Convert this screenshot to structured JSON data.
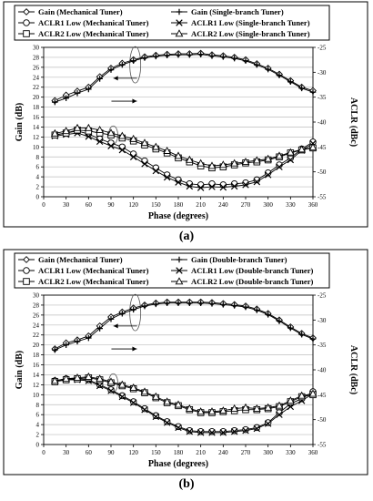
{
  "panels": [
    {
      "caption": "(a)",
      "chart_data": {
        "type": "line",
        "x_label": "Phase (degrees)",
        "y_left_label": "Gain (dB)",
        "y_right_label": "ACLR (dBc)",
        "x_ticks": [
          0,
          30,
          60,
          90,
          120,
          150,
          180,
          210,
          240,
          270,
          300,
          330,
          360
        ],
        "y_left_ticks": [
          0,
          2,
          4,
          6,
          8,
          10,
          12,
          14,
          16,
          18,
          20,
          22,
          24,
          26,
          28,
          30
        ],
        "y_right_ticks": [
          -25,
          -30,
          -35,
          -40,
          -45,
          -50,
          -55
        ],
        "xlim": [
          0,
          360
        ],
        "y_left_lim": [
          0,
          30
        ],
        "y_right_lim": [
          -55,
          -25
        ],
        "legend_position": "top",
        "x": [
          15,
          30,
          45,
          60,
          75,
          90,
          105,
          120,
          135,
          150,
          165,
          180,
          195,
          210,
          225,
          240,
          255,
          270,
          285,
          300,
          315,
          330,
          345,
          360
        ],
        "series": [
          {
            "name": "Gain (Mechanical Tuner)",
            "axis": "left",
            "marker": "diamond",
            "values": [
              19.3,
              20.4,
              21.2,
              22.0,
              24.1,
              25.8,
              26.8,
              27.5,
              28.1,
              28.4,
              28.6,
              28.7,
              28.7,
              28.8,
              28.5,
              28.3,
              28.0,
              27.5,
              26.7,
              25.8,
              24.6,
              23.3,
              22.0,
              21.3
            ]
          },
          {
            "name": "Gain (Single-branch Tuner)",
            "axis": "left",
            "marker": "plus",
            "values": [
              19.0,
              19.8,
              20.8,
              21.6,
              23.7,
              25.5,
              26.5,
              27.3,
              27.9,
              28.2,
              28.4,
              28.5,
              28.5,
              28.6,
              28.3,
              28.1,
              27.8,
              27.3,
              26.5,
              25.6,
              24.4,
              23.1,
              21.8,
              21.0
            ]
          },
          {
            "name": "ACLR1 Low (Mechanical Tuner)",
            "axis": "right",
            "marker": "circle",
            "values": [
              -42.6,
              -42.2,
              -41.8,
              -42.4,
              -43.4,
              -44.2,
              -45.0,
              -46.4,
              -47.8,
              -49.2,
              -50.6,
              -51.6,
              -52.4,
              -52.6,
              -52.4,
              -52.6,
              -52.4,
              -52.2,
              -51.6,
              -50.2,
              -48.6,
              -47.2,
              -45.4,
              -44.0
            ]
          },
          {
            "name": "ACLR1 Low (Single-branch Tuner)",
            "axis": "right",
            "marker": "x",
            "values": [
              -42.8,
              -42.5,
              -42.2,
              -42.9,
              -43.9,
              -44.8,
              -45.6,
              -47.0,
              -48.4,
              -49.8,
              -51.1,
              -52.1,
              -52.9,
              -53.2,
              -53.0,
              -53.1,
              -52.9,
              -52.6,
              -52.0,
              -50.6,
              -49.0,
              -47.6,
              -45.7,
              -44.3
            ]
          },
          {
            "name": "ACLR2 Low (Mechanical Tuner)",
            "axis": "right",
            "marker": "square",
            "values": [
              -42.6,
              -42.2,
              -41.6,
              -41.8,
              -42.2,
              -42.6,
              -43.2,
              -43.8,
              -44.6,
              -45.4,
              -46.2,
              -47.2,
              -48.0,
              -48.8,
              -49.2,
              -49.0,
              -48.6,
              -48.2,
              -48.0,
              -47.6,
              -47.0,
              -46.2,
              -45.6,
              -45.2
            ]
          },
          {
            "name": "ACLR2 Low (Single-branch Tuner)",
            "axis": "right",
            "marker": "triangle",
            "values": [
              -42.3,
              -41.8,
              -41.2,
              -41.2,
              -41.6,
              -42.2,
              -42.8,
              -43.4,
              -44.2,
              -45.0,
              -45.8,
              -46.8,
              -47.6,
              -48.3,
              -48.8,
              -48.6,
              -48.3,
              -48.0,
              -47.7,
              -47.4,
              -46.8,
              -46.1,
              -45.5,
              -45.1
            ]
          }
        ],
        "annotations": [
          {
            "ellipse_at_x": 120,
            "arrow": "left"
          },
          {
            "ellipse_at_x": 93,
            "arrow": "right"
          }
        ]
      }
    },
    {
      "caption": "(b)",
      "chart_data": {
        "type": "line",
        "x_label": "Phase (degrees)",
        "y_left_label": "Gain (dB)",
        "y_right_label": "ACLR (dBc)",
        "x_ticks": [
          0,
          30,
          60,
          90,
          120,
          150,
          180,
          210,
          240,
          270,
          300,
          330,
          360
        ],
        "y_left_ticks": [
          0,
          2,
          4,
          6,
          8,
          10,
          12,
          14,
          16,
          18,
          20,
          22,
          24,
          26,
          28,
          30
        ],
        "y_right_ticks": [
          -25,
          -30,
          -35,
          -40,
          -45,
          -50,
          -55
        ],
        "xlim": [
          0,
          360
        ],
        "y_left_lim": [
          0,
          30
        ],
        "y_right_lim": [
          -55,
          -25
        ],
        "legend_position": "top",
        "x": [
          15,
          30,
          45,
          60,
          75,
          90,
          105,
          120,
          135,
          150,
          165,
          180,
          195,
          210,
          225,
          240,
          255,
          270,
          285,
          300,
          315,
          330,
          345,
          360
        ],
        "series": [
          {
            "name": "Gain (Mechanical Tuner)",
            "axis": "left",
            "marker": "diamond",
            "values": [
              19.2,
              20.4,
              21.0,
              21.8,
              23.8,
              25.6,
              26.6,
              27.4,
              28.0,
              28.4,
              28.6,
              28.6,
              28.6,
              28.6,
              28.5,
              28.3,
              28.1,
              27.8,
              27.2,
              26.3,
              25.0,
              23.6,
              22.3,
              21.4
            ]
          },
          {
            "name": "Gain (Double-branch Tuner)",
            "axis": "left",
            "marker": "plus",
            "values": [
              19.0,
              20.0,
              20.7,
              21.4,
              23.3,
              25.2,
              26.3,
              27.1,
              27.8,
              28.2,
              28.4,
              28.4,
              28.4,
              28.4,
              28.3,
              28.1,
              27.9,
              27.6,
              27.0,
              26.1,
              24.8,
              23.4,
              22.1,
              21.2
            ]
          },
          {
            "name": "ACLR1 Low (Mechanical Tuner)",
            "axis": "right",
            "marker": "circle",
            "values": [
              -42.2,
              -41.8,
              -41.8,
              -42.0,
              -43.0,
              -44.0,
              -45.2,
              -46.4,
              -47.8,
              -49.2,
              -50.4,
              -51.4,
              -52.2,
              -52.4,
              -52.4,
              -52.4,
              -52.2,
              -52.0,
              -51.6,
              -50.6,
              -48.6,
              -46.8,
              -45.8,
              -44.4
            ]
          },
          {
            "name": "ACLR1 Low (Double-branch Tuner)",
            "axis": "right",
            "marker": "x",
            "values": [
              -42.3,
              -42.0,
              -42.0,
              -42.2,
              -43.2,
              -44.2,
              -45.4,
              -46.6,
              -48.0,
              -49.4,
              -50.6,
              -51.6,
              -52.4,
              -52.6,
              -52.6,
              -52.6,
              -52.4,
              -52.2,
              -51.8,
              -50.8,
              -49.0,
              -47.4,
              -46.2,
              -44.8
            ]
          },
          {
            "name": "ACLR2 Low (Mechanical Tuner)",
            "axis": "right",
            "marker": "square",
            "values": [
              -42.4,
              -42.0,
              -41.8,
              -41.6,
              -42.0,
              -42.6,
              -43.2,
              -43.8,
              -44.6,
              -45.6,
              -46.6,
              -47.2,
              -48.0,
              -48.6,
              -48.6,
              -48.4,
              -48.2,
              -48.0,
              -48.0,
              -47.8,
              -47.4,
              -46.4,
              -45.4,
              -45.0
            ]
          },
          {
            "name": "ACLR2 Low (Double-branch Tuner)",
            "axis": "right",
            "marker": "triangle",
            "values": [
              -42.2,
              -41.8,
              -41.6,
              -41.4,
              -41.8,
              -42.4,
              -43.0,
              -43.6,
              -44.4,
              -45.4,
              -46.4,
              -47.0,
              -47.8,
              -48.4,
              -48.4,
              -48.2,
              -47.8,
              -47.6,
              -47.8,
              -47.6,
              -47.2,
              -46.2,
              -45.2,
              -44.8
            ]
          }
        ],
        "annotations": [
          {
            "ellipse_at_x": 120,
            "arrow": "left"
          },
          {
            "ellipse_at_x": 93,
            "arrow": "right"
          }
        ]
      }
    }
  ]
}
